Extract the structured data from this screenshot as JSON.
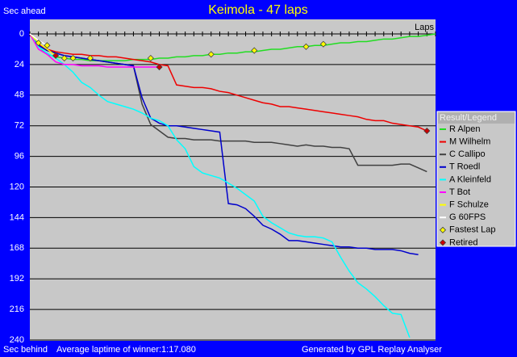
{
  "chart_data": {
    "type": "line",
    "title": "Keimola - 47 laps",
    "y_label_top": "Sec ahead",
    "y_label_bottom": "Sec behind",
    "x_label": "Laps",
    "footer_left": "Average laptime of winner:1:17.080",
    "footer_right": "Generated by GPL Replay Analyser",
    "legend_title": "Result/Legend",
    "legend_position": "right",
    "grid": true,
    "ylim": [
      0,
      240
    ],
    "yticks": [
      0,
      24,
      48,
      72,
      96,
      120,
      144,
      168,
      192,
      216,
      240
    ],
    "xlim": [
      0,
      47
    ],
    "xticks": [
      0,
      1,
      2,
      3,
      4,
      5,
      6,
      7,
      8,
      9,
      10,
      11,
      12,
      13,
      14,
      15,
      16,
      17,
      18,
      19,
      20,
      21,
      22,
      23,
      24,
      25,
      26,
      27,
      28,
      29,
      30,
      31,
      32,
      33,
      34,
      35,
      36,
      37,
      38,
      39,
      40,
      41,
      42,
      43,
      44,
      45,
      46,
      47
    ],
    "x": [
      0,
      1,
      2,
      3,
      4,
      5,
      6,
      7,
      8,
      9,
      10,
      11,
      12,
      13,
      14,
      15,
      16,
      17,
      18,
      19,
      20,
      21,
      22,
      23,
      24,
      25,
      26,
      27,
      28,
      29,
      30,
      31,
      32,
      33,
      34,
      35,
      36,
      37,
      38,
      39,
      40,
      41,
      42,
      43,
      44,
      45,
      46,
      47
    ],
    "series": [
      {
        "name": "R Alpen",
        "color": "#22dd22",
        "values": [
          0,
          10,
          16,
          18,
          19,
          20,
          20,
          21,
          21,
          21,
          21,
          21,
          20,
          20,
          20,
          19,
          19,
          18,
          18,
          17,
          17,
          16,
          16,
          15,
          15,
          14,
          14,
          13,
          12,
          12,
          11,
          10,
          10,
          9,
          9,
          8,
          7,
          7,
          6,
          6,
          5,
          4,
          4,
          3,
          2,
          2,
          1,
          0
        ]
      },
      {
        "name": "M Wilhelm",
        "color": "#ee0000",
        "values": [
          0,
          8,
          12,
          14,
          15,
          16,
          16,
          17,
          17,
          18,
          18,
          19,
          20,
          21,
          22,
          24,
          25,
          40,
          41,
          42,
          42,
          43,
          45,
          46,
          48,
          50,
          52,
          54,
          55,
          57,
          57,
          58,
          59,
          60,
          61,
          62,
          63,
          64,
          65,
          67,
          68,
          68,
          70,
          71,
          72,
          73,
          76,
          null
        ]
      },
      {
        "name": "C Callipo",
        "color": "#404040",
        "values": [
          0,
          9,
          13,
          15,
          17,
          18,
          19,
          20,
          21,
          22,
          23,
          24,
          25,
          55,
          71,
          76,
          81,
          82,
          82,
          83,
          83,
          83,
          84,
          84,
          84,
          84,
          85,
          85,
          85,
          86,
          87,
          88,
          87,
          88,
          88,
          89,
          89,
          90,
          103,
          103,
          103,
          103,
          103,
          102,
          102,
          105,
          108,
          null
        ]
      },
      {
        "name": "T Roedl",
        "color": "#0000cc",
        "values": [
          0,
          9,
          13,
          15,
          17,
          18,
          19,
          20,
          21,
          22,
          23,
          24,
          25,
          50,
          66,
          70,
          72,
          72,
          73,
          74,
          75,
          76,
          77,
          133,
          134,
          137,
          143,
          150,
          153,
          157,
          162,
          162,
          163,
          164,
          165,
          166,
          167,
          167,
          168,
          168,
          169,
          169,
          169,
          170,
          172,
          173,
          null,
          null
        ]
      },
      {
        "name": "A Kleinfeld",
        "color": "#00ffff",
        "values": [
          0,
          10,
          15,
          19,
          24,
          30,
          38,
          42,
          48,
          53,
          55,
          57,
          59,
          62,
          66,
          68,
          72,
          83,
          90,
          104,
          109,
          111,
          113,
          117,
          121,
          126,
          131,
          143,
          148,
          152,
          156,
          158,
          159,
          159,
          160,
          163,
          175,
          186,
          195,
          200,
          206,
          213,
          219,
          220,
          238,
          null,
          null,
          null
        ]
      },
      {
        "name": "T Bot",
        "color": "#ff00ff",
        "values": [
          0,
          12,
          16,
          22,
          24,
          24,
          25,
          25,
          25,
          26,
          26,
          26,
          26,
          26,
          26,
          26,
          null,
          null,
          null,
          null,
          null,
          null,
          null,
          null,
          null,
          null,
          null,
          null,
          null,
          null,
          null,
          null,
          null,
          null,
          null,
          null,
          null,
          null,
          null,
          null,
          null,
          null,
          null,
          null,
          null,
          null,
          null,
          null
        ]
      },
      {
        "name": "F Schulze",
        "color": "#ffff00",
        "values": [
          0,
          7,
          12,
          17,
          null,
          null,
          null,
          null,
          null,
          null,
          null,
          null,
          null,
          null,
          null,
          null,
          null,
          null,
          null,
          null,
          null,
          null,
          null,
          null,
          null,
          null,
          null,
          null,
          null,
          null,
          null,
          null,
          null,
          null,
          null,
          null,
          null,
          null,
          null,
          null,
          null,
          null,
          null,
          null,
          null,
          null,
          null,
          null
        ]
      },
      {
        "name": "G 60FPS",
        "color": "#ffffff",
        "values": [
          0,
          5,
          9,
          null,
          null,
          null,
          null,
          null,
          null,
          null,
          null,
          null,
          null,
          null,
          null,
          null,
          null,
          null,
          null,
          null,
          null,
          null,
          null,
          null,
          null,
          null,
          null,
          null,
          null,
          null,
          null,
          null,
          null,
          null,
          null,
          null,
          null,
          null,
          null,
          null,
          null,
          null,
          null,
          null,
          null,
          null,
          null,
          null
        ]
      },
      {
        "name": "Fastest Lap",
        "color": "#ffff00",
        "marker": "diamond",
        "x": [
          1,
          2,
          4,
          5,
          7,
          14,
          21,
          26,
          32,
          34
        ],
        "values": [
          7,
          9,
          19,
          19,
          19,
          19,
          16,
          13,
          10,
          8
        ]
      },
      {
        "name": "Retired",
        "color": "#cc0000",
        "marker": "diamond",
        "x": [
          3,
          15,
          46
        ],
        "values": [
          17,
          26,
          76
        ]
      }
    ]
  }
}
